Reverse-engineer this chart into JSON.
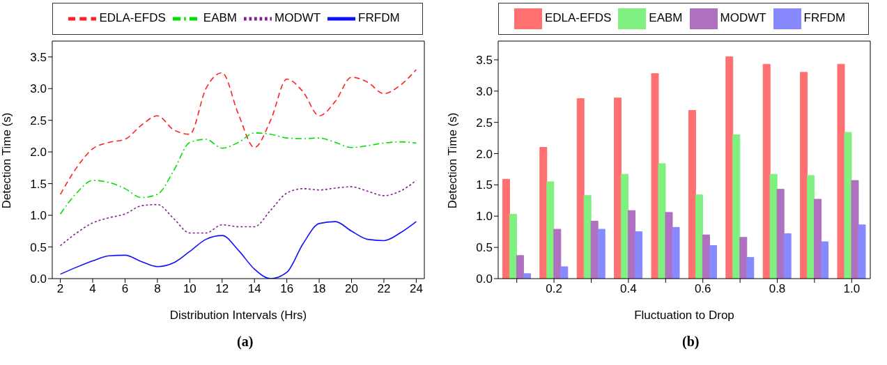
{
  "chart_data": [
    {
      "type": "line",
      "xlabel": "Distribution Intervals (Hrs)",
      "ylabel": "Detection Time (s)",
      "x": [
        2,
        3,
        4,
        5,
        6,
        7,
        8,
        9,
        10,
        11,
        12,
        13,
        14,
        15,
        16,
        17,
        18,
        19,
        20,
        21,
        22,
        23,
        24
      ],
      "xlim": [
        1.5,
        24.5
      ],
      "xticks": [
        2,
        4,
        6,
        8,
        10,
        12,
        14,
        16,
        18,
        20,
        22,
        24
      ],
      "ylim": [
        0,
        3.75
      ],
      "yticks": [
        {
          "value": 0,
          "label": "0.0"
        },
        0.5,
        {
          "value": 1,
          "label": "1.0"
        },
        1.5,
        {
          "value": 2,
          "label": "2.0"
        },
        2.5,
        {
          "value": 3,
          "label": "3.0"
        },
        3.5
      ],
      "legend": "top",
      "grid": false,
      "marker": "none",
      "annotations": [
        "(a)"
      ],
      "series": [
        {
          "name": "EDLA-EFDS",
          "color": "#ff2020",
          "line_style": "dashed",
          "values": [
            1.33,
            1.75,
            2.05,
            2.15,
            2.2,
            2.42,
            2.57,
            2.35,
            2.28,
            3.0,
            3.25,
            2.6,
            2.07,
            2.5,
            3.15,
            2.95,
            2.57,
            2.8,
            3.18,
            3.1,
            2.92,
            3.05,
            3.3
          ]
        },
        {
          "name": "EABM",
          "color": "#00e000",
          "line_style": "dashdot",
          "values": [
            1.02,
            1.35,
            1.55,
            1.52,
            1.42,
            1.28,
            1.33,
            1.7,
            2.15,
            2.2,
            2.06,
            2.15,
            2.3,
            2.28,
            2.22,
            2.21,
            2.22,
            2.15,
            2.07,
            2.1,
            2.14,
            2.16,
            2.14
          ]
        },
        {
          "name": "MODWT",
          "color": "#8b1a9b",
          "line_style": "dotted",
          "values": [
            0.52,
            0.72,
            0.88,
            0.96,
            1.02,
            1.15,
            1.17,
            0.95,
            0.72,
            0.72,
            0.85,
            0.82,
            0.82,
            1.08,
            1.35,
            1.42,
            1.4,
            1.43,
            1.45,
            1.38,
            1.31,
            1.38,
            1.55
          ]
        },
        {
          "name": "FRFDM",
          "color": "#1010ff",
          "line_style": "solid",
          "values": [
            0.07,
            0.18,
            0.28,
            0.36,
            0.37,
            0.27,
            0.19,
            0.25,
            0.43,
            0.62,
            0.68,
            0.45,
            0.15,
            0.0,
            0.1,
            0.55,
            0.87,
            0.9,
            0.75,
            0.62,
            0.6,
            0.72,
            0.9
          ]
        }
      ]
    },
    {
      "type": "bar",
      "xlabel": "Fluctuation to Drop",
      "ylabel": "Detection Time (s)",
      "categories": [
        null,
        "0.2",
        null,
        "0.4",
        null,
        "0.6",
        null,
        "0.8",
        null,
        "1.0"
      ],
      "ylim": [
        0,
        3.8
      ],
      "yticks": [
        {
          "value": 0,
          "label": "0.0"
        },
        0.5,
        {
          "value": 1,
          "label": "1.0"
        },
        1.5,
        {
          "value": 2,
          "label": "2.0"
        },
        2.5,
        {
          "value": 3,
          "label": "3.0"
        },
        3.5
      ],
      "legend": "top",
      "grid": false,
      "annotations": [
        "(b)"
      ],
      "series": [
        {
          "name": "EDLA-EFDS",
          "color": "#ff7070",
          "values": [
            1.59,
            2.1,
            2.88,
            2.89,
            3.28,
            2.69,
            3.55,
            3.43,
            3.3,
            3.43
          ]
        },
        {
          "name": "EABM",
          "color": "#80f080",
          "values": [
            1.03,
            1.55,
            1.33,
            1.67,
            1.84,
            1.34,
            2.3,
            1.67,
            1.65,
            2.34
          ]
        },
        {
          "name": "MODWT",
          "color": "#b070c0",
          "values": [
            0.37,
            0.79,
            0.92,
            1.09,
            1.06,
            0.7,
            0.66,
            1.43,
            1.27,
            1.57
          ]
        },
        {
          "name": "FRFDM",
          "color": "#8888ff",
          "values": [
            0.08,
            0.19,
            0.79,
            0.75,
            0.82,
            0.53,
            0.34,
            0.72,
            0.59,
            0.86
          ]
        }
      ]
    }
  ]
}
